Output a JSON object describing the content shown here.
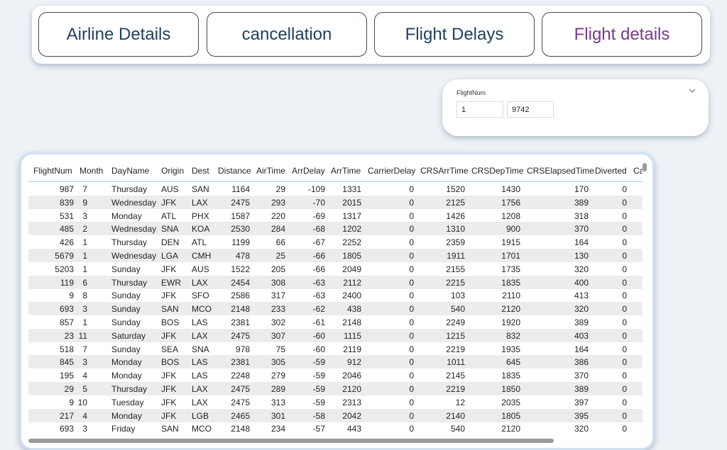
{
  "nav": {
    "buttons": [
      "Airline Details",
      "cancellation",
      "Flight Delays",
      "Flight details"
    ]
  },
  "slicer": {
    "label": "FlightNum",
    "min": "1",
    "max": "9742"
  },
  "table": {
    "columns": [
      "FlightNum",
      "Month",
      "DayName",
      "Origin",
      "Dest",
      "Distance",
      "AirTime",
      "ArrDelay",
      "ArrTime",
      "CarrierDelay",
      "CRSArrTime",
      "CRSDepTime",
      "CRSElapsedTime",
      "Diverted",
      "Ca"
    ],
    "rows": [
      [
        987,
        7,
        "Thursday",
        "AUS",
        "SAN",
        1164,
        29,
        -109,
        1331,
        0,
        1520,
        1430,
        170,
        0
      ],
      [
        839,
        9,
        "Wednesday",
        "JFK",
        "LAX",
        2475,
        293,
        -70,
        2015,
        0,
        2125,
        1756,
        389,
        0
      ],
      [
        531,
        3,
        "Monday",
        "ATL",
        "PHX",
        1587,
        220,
        -69,
        1317,
        0,
        1426,
        1208,
        318,
        0
      ],
      [
        485,
        2,
        "Wednesday",
        "SNA",
        "KOA",
        2530,
        284,
        -68,
        1202,
        0,
        1310,
        900,
        370,
        0
      ],
      [
        426,
        1,
        "Thursday",
        "DEN",
        "ATL",
        1199,
        66,
        -67,
        2252,
        0,
        2359,
        1915,
        164,
        0
      ],
      [
        5679,
        1,
        "Wednesday",
        "LGA",
        "CMH",
        478,
        25,
        -66,
        1805,
        0,
        1911,
        1701,
        130,
        0
      ],
      [
        5203,
        1,
        "Sunday",
        "JFK",
        "AUS",
        1522,
        205,
        -66,
        2049,
        0,
        2155,
        1735,
        320,
        0
      ],
      [
        119,
        6,
        "Thursday",
        "EWR",
        "LAX",
        2454,
        308,
        -63,
        2112,
        0,
        2215,
        1835,
        400,
        0
      ],
      [
        9,
        8,
        "Sunday",
        "JFK",
        "SFO",
        2586,
        317,
        -63,
        2400,
        0,
        103,
        2110,
        413,
        0
      ],
      [
        693,
        3,
        "Sunday",
        "SAN",
        "MCO",
        2148,
        233,
        -62,
        438,
        0,
        540,
        2120,
        320,
        0
      ],
      [
        857,
        1,
        "Sunday",
        "BOS",
        "LAS",
        2381,
        302,
        -61,
        2148,
        0,
        2249,
        1920,
        389,
        0
      ],
      [
        23,
        11,
        "Saturday",
        "JFK",
        "LAX",
        2475,
        307,
        -60,
        1115,
        0,
        1215,
        832,
        403,
        0
      ],
      [
        518,
        7,
        "Sunday",
        "SEA",
        "SNA",
        978,
        75,
        -60,
        2119,
        0,
        2219,
        1935,
        164,
        0
      ],
      [
        845,
        3,
        "Monday",
        "BOS",
        "LAS",
        2381,
        305,
        -59,
        912,
        0,
        1011,
        645,
        386,
        0
      ],
      [
        195,
        4,
        "Monday",
        "JFK",
        "LAS",
        2248,
        279,
        -59,
        2046,
        0,
        2145,
        1835,
        370,
        0
      ],
      [
        29,
        5,
        "Thursday",
        "JFK",
        "LAX",
        2475,
        289,
        -59,
        2120,
        0,
        2219,
        1850,
        389,
        0
      ],
      [
        9,
        10,
        "Tuesday",
        "JFK",
        "LAX",
        2475,
        313,
        -59,
        2313,
        0,
        12,
        2035,
        397,
        0
      ],
      [
        217,
        4,
        "Monday",
        "JFK",
        "LGB",
        2465,
        301,
        -58,
        2042,
        0,
        2140,
        1805,
        395,
        0
      ],
      [
        693,
        3,
        "Friday",
        "SAN",
        "MCO",
        2148,
        234,
        -57,
        443,
        0,
        540,
        2120,
        320,
        0
      ]
    ]
  }
}
